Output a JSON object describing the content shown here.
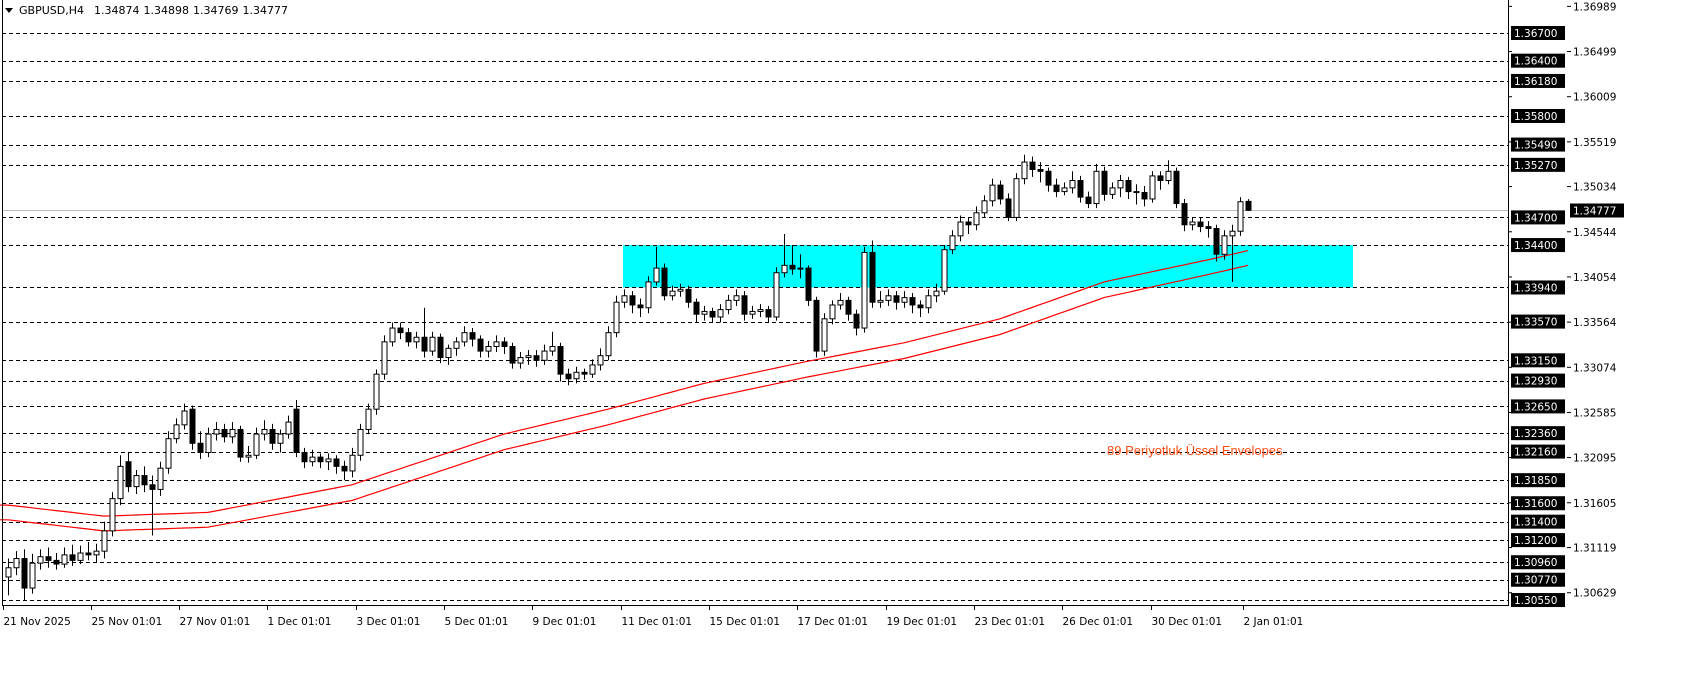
{
  "header": {
    "symbol": "GBPUSD,H4",
    "open": "1.34874",
    "high": "1.34898",
    "low": "1.34769",
    "close": "1.34777",
    "dropdown_icon": "triangle-down-icon"
  },
  "annotation": {
    "text": "89 Periyotluk Üssel Envelopes",
    "color": "#FF4B14"
  },
  "colors": {
    "zone": "#00FFFF",
    "envelope": "#FF0000",
    "bull_body": "#FFFFFF",
    "bear_body": "#000000",
    "level_label_bg": "#000000",
    "level_label_text": "#FFFFFF",
    "current_price_line": "#C0C0C0"
  },
  "chart_data": {
    "type": "candlestick",
    "symbol": "GBPUSD",
    "timeframe": "H4",
    "ylim": [
      1.3049,
      1.36989
    ],
    "grid": false,
    "y_ticks": [
      "1.36989",
      "1.36499",
      "1.36009",
      "1.35519",
      "1.35034",
      "1.34544",
      "1.34054",
      "1.33564",
      "1.33074",
      "1.32585",
      "1.32095",
      "1.31605",
      "1.31119",
      "1.30629"
    ],
    "x_tick_labels": [
      "21 Nov 2025",
      "25 Nov 01:01",
      "27 Nov 01:01",
      "1 Dec 01:01",
      "3 Dec 01:01",
      "5 Dec 01:01",
      "9 Dec 01:01",
      "11 Dec 01:01",
      "15 Dec 01:01",
      "17 Dec 01:01",
      "19 Dec 01:01",
      "23 Dec 01:01",
      "26 Dec 01:01",
      "30 Dec 01:01",
      "2 Jan 01:01"
    ],
    "current_price": "1.34777",
    "levels": [
      "1.36700",
      "1.36400",
      "1.36180",
      "1.35800",
      "1.35490",
      "1.35270",
      "1.34700",
      "1.34400",
      "1.33940",
      "1.33570",
      "1.33150",
      "1.32930",
      "1.32650",
      "1.32360",
      "1.32160",
      "1.31850",
      "1.31600",
      "1.31400",
      "1.31200",
      "1.30960",
      "1.30770",
      "1.30550"
    ],
    "zone": {
      "price_from": 1.3394,
      "price_to": 1.344,
      "bar_from": 77,
      "bar_to": 168
    },
    "envelope_upper": [
      [
        0,
        1.3158
      ],
      [
        12,
        1.3146
      ],
      [
        25,
        1.315
      ],
      [
        43,
        1.318
      ],
      [
        62,
        1.3235
      ],
      [
        75,
        1.3262
      ],
      [
        87,
        1.329
      ],
      [
        100,
        1.3314
      ],
      [
        112,
        1.3334
      ],
      [
        124,
        1.336
      ],
      [
        137,
        1.34
      ],
      [
        150,
        1.3424
      ],
      [
        155,
        1.3434
      ]
    ],
    "envelope_lower": [
      [
        0,
        1.3142
      ],
      [
        12,
        1.313
      ],
      [
        25,
        1.3134
      ],
      [
        43,
        1.3163
      ],
      [
        62,
        1.3218
      ],
      [
        75,
        1.3245
      ],
      [
        87,
        1.3273
      ],
      [
        100,
        1.3297
      ],
      [
        112,
        1.3317
      ],
      [
        124,
        1.3343
      ],
      [
        137,
        1.3383
      ],
      [
        150,
        1.3408
      ],
      [
        155,
        1.3418
      ]
    ],
    "ohlc": [
      [
        1.308,
        1.31,
        1.306,
        1.309
      ],
      [
        1.309,
        1.3108,
        1.3082,
        1.31
      ],
      [
        1.31,
        1.311,
        1.3055,
        1.3068
      ],
      [
        1.3068,
        1.3105,
        1.3062,
        1.3095
      ],
      [
        1.3095,
        1.311,
        1.3088,
        1.3102
      ],
      [
        1.3102,
        1.3112,
        1.309,
        1.3098
      ],
      [
        1.3098,
        1.3106,
        1.3088,
        1.3094
      ],
      [
        1.3094,
        1.3112,
        1.309,
        1.3104
      ],
      [
        1.3104,
        1.3115,
        1.3092,
        1.3098
      ],
      [
        1.3098,
        1.3114,
        1.3094,
        1.3106
      ],
      [
        1.3106,
        1.3118,
        1.3098,
        1.3104
      ],
      [
        1.3104,
        1.3116,
        1.3096,
        1.3108
      ],
      [
        1.3108,
        1.314,
        1.31,
        1.313
      ],
      [
        1.313,
        1.3172,
        1.3124,
        1.3165
      ],
      [
        1.3165,
        1.3212,
        1.3158,
        1.32
      ],
      [
        1.3205,
        1.3215,
        1.3172,
        1.3178
      ],
      [
        1.3178,
        1.3196,
        1.317,
        1.319
      ],
      [
        1.319,
        1.32,
        1.3172,
        1.318
      ],
      [
        1.318,
        1.319,
        1.3125,
        1.3175
      ],
      [
        1.3175,
        1.3205,
        1.3168,
        1.3198
      ],
      [
        1.3198,
        1.3238,
        1.3192,
        1.323
      ],
      [
        1.323,
        1.3252,
        1.3225,
        1.3245
      ],
      [
        1.3245,
        1.3268,
        1.324,
        1.326
      ],
      [
        1.3262,
        1.3266,
        1.3218,
        1.3225
      ],
      [
        1.3225,
        1.3238,
        1.3208,
        1.3215
      ],
      [
        1.3215,
        1.3242,
        1.321,
        1.3235
      ],
      [
        1.3235,
        1.3248,
        1.3228,
        1.324
      ],
      [
        1.324,
        1.3246,
        1.3226,
        1.3232
      ],
      [
        1.3232,
        1.3248,
        1.3225,
        1.324
      ],
      [
        1.324,
        1.3244,
        1.3205,
        1.321
      ],
      [
        1.321,
        1.3222,
        1.3204,
        1.3212
      ],
      [
        1.3212,
        1.3242,
        1.3208,
        1.3235
      ],
      [
        1.3235,
        1.325,
        1.3228,
        1.324
      ],
      [
        1.324,
        1.3246,
        1.3218,
        1.3225
      ],
      [
        1.3225,
        1.324,
        1.3215,
        1.3235
      ],
      [
        1.3235,
        1.3255,
        1.323,
        1.3248
      ],
      [
        1.3262,
        1.3272,
        1.321,
        1.3215
      ],
      [
        1.3215,
        1.322,
        1.3198,
        1.3205
      ],
      [
        1.3205,
        1.3218,
        1.32,
        1.321
      ],
      [
        1.321,
        1.3214,
        1.3198,
        1.3205
      ],
      [
        1.3205,
        1.3214,
        1.3196,
        1.3208
      ],
      [
        1.3208,
        1.3212,
        1.3192,
        1.32
      ],
      [
        1.32,
        1.3206,
        1.3185,
        1.3195
      ],
      [
        1.3195,
        1.322,
        1.3188,
        1.3212
      ],
      [
        1.3212,
        1.3246,
        1.3206,
        1.324
      ],
      [
        1.324,
        1.3268,
        1.3235,
        1.3262
      ],
      [
        1.3262,
        1.3305,
        1.3256,
        1.33
      ],
      [
        1.33,
        1.3342,
        1.3294,
        1.3335
      ],
      [
        1.3335,
        1.3356,
        1.333,
        1.335
      ],
      [
        1.335,
        1.3356,
        1.3338,
        1.3345
      ],
      [
        1.3345,
        1.335,
        1.333,
        1.3335
      ],
      [
        1.3335,
        1.3346,
        1.3328,
        1.334
      ],
      [
        1.334,
        1.3372,
        1.3318,
        1.3325
      ],
      [
        1.3325,
        1.3346,
        1.332,
        1.334
      ],
      [
        1.334,
        1.3344,
        1.3312,
        1.3318
      ],
      [
        1.3318,
        1.3332,
        1.331,
        1.3328
      ],
      [
        1.3328,
        1.334,
        1.332,
        1.3335
      ],
      [
        1.3335,
        1.3352,
        1.333,
        1.3345
      ],
      [
        1.3345,
        1.335,
        1.333,
        1.3338
      ],
      [
        1.3338,
        1.3342,
        1.3318,
        1.3325
      ],
      [
        1.3325,
        1.3336,
        1.3318,
        1.333
      ],
      [
        1.333,
        1.3342,
        1.3324,
        1.3335
      ],
      [
        1.3335,
        1.334,
        1.3322,
        1.333
      ],
      [
        1.333,
        1.3334,
        1.3306,
        1.3312
      ],
      [
        1.3312,
        1.3324,
        1.3306,
        1.3318
      ],
      [
        1.3318,
        1.3326,
        1.331,
        1.332
      ],
      [
        1.332,
        1.3326,
        1.3308,
        1.3315
      ],
      [
        1.3315,
        1.3332,
        1.331,
        1.3325
      ],
      [
        1.3325,
        1.3346,
        1.332,
        1.333
      ],
      [
        1.333,
        1.3334,
        1.3292,
        1.33
      ],
      [
        1.33,
        1.3306,
        1.3288,
        1.3295
      ],
      [
        1.3295,
        1.3308,
        1.329,
        1.3302
      ],
      [
        1.3302,
        1.3306,
        1.3294,
        1.33
      ],
      [
        1.33,
        1.3316,
        1.3296,
        1.331
      ],
      [
        1.331,
        1.3328,
        1.3304,
        1.332
      ],
      [
        1.332,
        1.3352,
        1.3315,
        1.3345
      ],
      [
        1.3345,
        1.3385,
        1.334,
        1.3378
      ],
      [
        1.3378,
        1.3392,
        1.3372,
        1.3385
      ],
      [
        1.3385,
        1.339,
        1.3366,
        1.3375
      ],
      [
        1.3375,
        1.3382,
        1.3362,
        1.3372
      ],
      [
        1.3372,
        1.3406,
        1.3366,
        1.34
      ],
      [
        1.34,
        1.3438,
        1.3396,
        1.3415
      ],
      [
        1.3415,
        1.342,
        1.338,
        1.3385
      ],
      [
        1.3385,
        1.3396,
        1.338,
        1.339
      ],
      [
        1.339,
        1.3398,
        1.3384,
        1.3392
      ],
      [
        1.3392,
        1.3396,
        1.3372,
        1.3378
      ],
      [
        1.3378,
        1.3382,
        1.3356,
        1.3365
      ],
      [
        1.3365,
        1.3374,
        1.3358,
        1.3368
      ],
      [
        1.3368,
        1.3372,
        1.3356,
        1.3362
      ],
      [
        1.3362,
        1.3376,
        1.3356,
        1.337
      ],
      [
        1.337,
        1.3386,
        1.3365,
        1.338
      ],
      [
        1.338,
        1.3392,
        1.3374,
        1.3385
      ],
      [
        1.3385,
        1.339,
        1.3358,
        1.3365
      ],
      [
        1.3365,
        1.3374,
        1.336,
        1.3368
      ],
      [
        1.3368,
        1.3376,
        1.3362,
        1.337
      ],
      [
        1.337,
        1.3374,
        1.3356,
        1.3362
      ],
      [
        1.3362,
        1.3416,
        1.3358,
        1.341
      ],
      [
        1.341,
        1.3452,
        1.3405,
        1.3418
      ],
      [
        1.3418,
        1.344,
        1.3408,
        1.3414
      ],
      [
        1.3414,
        1.343,
        1.3404,
        1.3415
      ],
      [
        1.3415,
        1.3418,
        1.3374,
        1.338
      ],
      [
        1.338,
        1.3384,
        1.3318,
        1.3325
      ],
      [
        1.3325,
        1.3366,
        1.332,
        1.336
      ],
      [
        1.336,
        1.338,
        1.3354,
        1.3375
      ],
      [
        1.3375,
        1.3388,
        1.337,
        1.338
      ],
      [
        1.338,
        1.3384,
        1.3358,
        1.3365
      ],
      [
        1.3365,
        1.337,
        1.3342,
        1.335
      ],
      [
        1.335,
        1.3438,
        1.3345,
        1.3432
      ],
      [
        1.3432,
        1.3445,
        1.3372,
        1.3378
      ],
      [
        1.3378,
        1.339,
        1.3372,
        1.338
      ],
      [
        1.338,
        1.3392,
        1.3374,
        1.3385
      ],
      [
        1.3385,
        1.339,
        1.337,
        1.3378
      ],
      [
        1.3378,
        1.339,
        1.3372,
        1.3383
      ],
      [
        1.3383,
        1.3388,
        1.3366,
        1.3375
      ],
      [
        1.3375,
        1.338,
        1.3362,
        1.3372
      ],
      [
        1.3372,
        1.3392,
        1.3366,
        1.3385
      ],
      [
        1.3385,
        1.3398,
        1.3378,
        1.339
      ],
      [
        1.339,
        1.344,
        1.3386,
        1.3435
      ],
      [
        1.3435,
        1.3456,
        1.343,
        1.345
      ],
      [
        1.345,
        1.3472,
        1.3444,
        1.3465
      ],
      [
        1.3465,
        1.347,
        1.3452,
        1.3462
      ],
      [
        1.3462,
        1.3482,
        1.3456,
        1.3475
      ],
      [
        1.3475,
        1.3494,
        1.347,
        1.3488
      ],
      [
        1.3488,
        1.3512,
        1.3482,
        1.3505
      ],
      [
        1.3505,
        1.351,
        1.3484,
        1.349
      ],
      [
        1.349,
        1.3496,
        1.3466,
        1.347
      ],
      [
        1.347,
        1.3518,
        1.3466,
        1.3512
      ],
      [
        1.3512,
        1.3538,
        1.3506,
        1.353
      ],
      [
        1.353,
        1.3536,
        1.3514,
        1.3522
      ],
      [
        1.3522,
        1.353,
        1.3508,
        1.352
      ],
      [
        1.352,
        1.3524,
        1.3498,
        1.3505
      ],
      [
        1.3505,
        1.3512,
        1.3492,
        1.3498
      ],
      [
        1.3498,
        1.3508,
        1.3494,
        1.3502
      ],
      [
        1.3502,
        1.352,
        1.3496,
        1.351
      ],
      [
        1.351,
        1.3515,
        1.3486,
        1.3492
      ],
      [
        1.3492,
        1.3498,
        1.348,
        1.3485
      ],
      [
        1.3485,
        1.3528,
        1.348,
        1.352
      ],
      [
        1.352,
        1.3525,
        1.3488,
        1.3495
      ],
      [
        1.3495,
        1.3508,
        1.349,
        1.3502
      ],
      [
        1.3502,
        1.3516,
        1.3492,
        1.351
      ],
      [
        1.351,
        1.3514,
        1.349,
        1.3498
      ],
      [
        1.3498,
        1.3506,
        1.3484,
        1.3497
      ],
      [
        1.3497,
        1.3504,
        1.3482,
        1.349
      ],
      [
        1.349,
        1.352,
        1.3486,
        1.3515
      ],
      [
        1.3515,
        1.352,
        1.35,
        1.351
      ],
      [
        1.351,
        1.3532,
        1.3506,
        1.352
      ],
      [
        1.352,
        1.3524,
        1.348,
        1.3485
      ],
      [
        1.3485,
        1.349,
        1.3455,
        1.3462
      ],
      [
        1.3462,
        1.347,
        1.3456,
        1.3465
      ],
      [
        1.3465,
        1.347,
        1.3454,
        1.346
      ],
      [
        1.346,
        1.3466,
        1.3448,
        1.3458
      ],
      [
        1.3458,
        1.3462,
        1.3422,
        1.343
      ],
      [
        1.343,
        1.3456,
        1.3424,
        1.345
      ],
      [
        1.345,
        1.3462,
        1.34,
        1.3455
      ],
      [
        1.3455,
        1.3492,
        1.345,
        1.3487
      ],
      [
        1.34874,
        1.34898,
        1.34769,
        1.34777
      ]
    ]
  }
}
